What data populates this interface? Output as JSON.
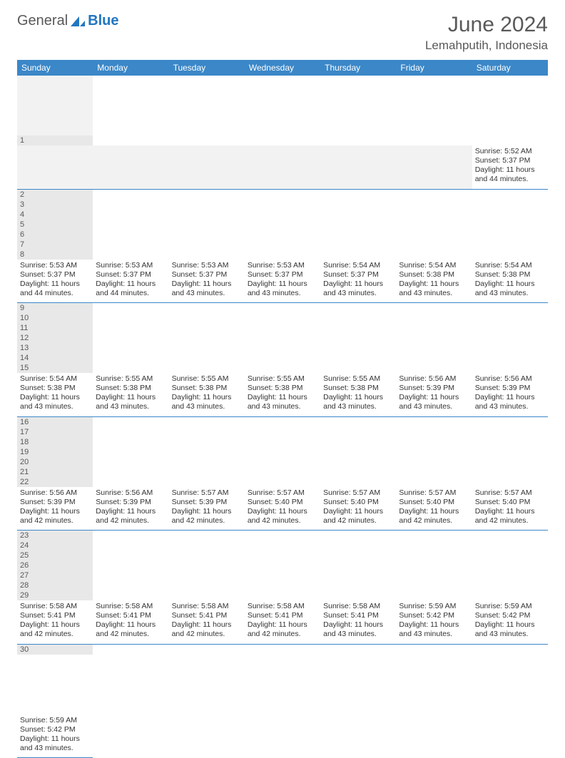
{
  "logo": {
    "word1": "General",
    "word2": "Blue"
  },
  "title": "June 2024",
  "location": "Lemahputih, Indonesia",
  "colors": {
    "header_bg": "#3b87c8",
    "header_text": "#ffffff",
    "num_bg": "#e8e8e8",
    "border": "#3b87c8",
    "text": "#333333"
  },
  "day_names": [
    "Sunday",
    "Monday",
    "Tuesday",
    "Wednesday",
    "Thursday",
    "Friday",
    "Saturday"
  ],
  "weeks": [
    [
      null,
      null,
      null,
      null,
      null,
      null,
      {
        "n": "1",
        "sr": "Sunrise: 5:52 AM",
        "ss": "Sunset: 5:37 PM",
        "dl": "Daylight: 11 hours and 44 minutes."
      }
    ],
    [
      {
        "n": "2",
        "sr": "Sunrise: 5:53 AM",
        "ss": "Sunset: 5:37 PM",
        "dl": "Daylight: 11 hours and 44 minutes."
      },
      {
        "n": "3",
        "sr": "Sunrise: 5:53 AM",
        "ss": "Sunset: 5:37 PM",
        "dl": "Daylight: 11 hours and 44 minutes."
      },
      {
        "n": "4",
        "sr": "Sunrise: 5:53 AM",
        "ss": "Sunset: 5:37 PM",
        "dl": "Daylight: 11 hours and 43 minutes."
      },
      {
        "n": "5",
        "sr": "Sunrise: 5:53 AM",
        "ss": "Sunset: 5:37 PM",
        "dl": "Daylight: 11 hours and 43 minutes."
      },
      {
        "n": "6",
        "sr": "Sunrise: 5:54 AM",
        "ss": "Sunset: 5:37 PM",
        "dl": "Daylight: 11 hours and 43 minutes."
      },
      {
        "n": "7",
        "sr": "Sunrise: 5:54 AM",
        "ss": "Sunset: 5:38 PM",
        "dl": "Daylight: 11 hours and 43 minutes."
      },
      {
        "n": "8",
        "sr": "Sunrise: 5:54 AM",
        "ss": "Sunset: 5:38 PM",
        "dl": "Daylight: 11 hours and 43 minutes."
      }
    ],
    [
      {
        "n": "9",
        "sr": "Sunrise: 5:54 AM",
        "ss": "Sunset: 5:38 PM",
        "dl": "Daylight: 11 hours and 43 minutes."
      },
      {
        "n": "10",
        "sr": "Sunrise: 5:55 AM",
        "ss": "Sunset: 5:38 PM",
        "dl": "Daylight: 11 hours and 43 minutes."
      },
      {
        "n": "11",
        "sr": "Sunrise: 5:55 AM",
        "ss": "Sunset: 5:38 PM",
        "dl": "Daylight: 11 hours and 43 minutes."
      },
      {
        "n": "12",
        "sr": "Sunrise: 5:55 AM",
        "ss": "Sunset: 5:38 PM",
        "dl": "Daylight: 11 hours and 43 minutes."
      },
      {
        "n": "13",
        "sr": "Sunrise: 5:55 AM",
        "ss": "Sunset: 5:38 PM",
        "dl": "Daylight: 11 hours and 43 minutes."
      },
      {
        "n": "14",
        "sr": "Sunrise: 5:56 AM",
        "ss": "Sunset: 5:39 PM",
        "dl": "Daylight: 11 hours and 43 minutes."
      },
      {
        "n": "15",
        "sr": "Sunrise: 5:56 AM",
        "ss": "Sunset: 5:39 PM",
        "dl": "Daylight: 11 hours and 43 minutes."
      }
    ],
    [
      {
        "n": "16",
        "sr": "Sunrise: 5:56 AM",
        "ss": "Sunset: 5:39 PM",
        "dl": "Daylight: 11 hours and 42 minutes."
      },
      {
        "n": "17",
        "sr": "Sunrise: 5:56 AM",
        "ss": "Sunset: 5:39 PM",
        "dl": "Daylight: 11 hours and 42 minutes."
      },
      {
        "n": "18",
        "sr": "Sunrise: 5:57 AM",
        "ss": "Sunset: 5:39 PM",
        "dl": "Daylight: 11 hours and 42 minutes."
      },
      {
        "n": "19",
        "sr": "Sunrise: 5:57 AM",
        "ss": "Sunset: 5:40 PM",
        "dl": "Daylight: 11 hours and 42 minutes."
      },
      {
        "n": "20",
        "sr": "Sunrise: 5:57 AM",
        "ss": "Sunset: 5:40 PM",
        "dl": "Daylight: 11 hours and 42 minutes."
      },
      {
        "n": "21",
        "sr": "Sunrise: 5:57 AM",
        "ss": "Sunset: 5:40 PM",
        "dl": "Daylight: 11 hours and 42 minutes."
      },
      {
        "n": "22",
        "sr": "Sunrise: 5:57 AM",
        "ss": "Sunset: 5:40 PM",
        "dl": "Daylight: 11 hours and 42 minutes."
      }
    ],
    [
      {
        "n": "23",
        "sr": "Sunrise: 5:58 AM",
        "ss": "Sunset: 5:41 PM",
        "dl": "Daylight: 11 hours and 42 minutes."
      },
      {
        "n": "24",
        "sr": "Sunrise: 5:58 AM",
        "ss": "Sunset: 5:41 PM",
        "dl": "Daylight: 11 hours and 42 minutes."
      },
      {
        "n": "25",
        "sr": "Sunrise: 5:58 AM",
        "ss": "Sunset: 5:41 PM",
        "dl": "Daylight: 11 hours and 42 minutes."
      },
      {
        "n": "26",
        "sr": "Sunrise: 5:58 AM",
        "ss": "Sunset: 5:41 PM",
        "dl": "Daylight: 11 hours and 42 minutes."
      },
      {
        "n": "27",
        "sr": "Sunrise: 5:58 AM",
        "ss": "Sunset: 5:41 PM",
        "dl": "Daylight: 11 hours and 43 minutes."
      },
      {
        "n": "28",
        "sr": "Sunrise: 5:59 AM",
        "ss": "Sunset: 5:42 PM",
        "dl": "Daylight: 11 hours and 43 minutes."
      },
      {
        "n": "29",
        "sr": "Sunrise: 5:59 AM",
        "ss": "Sunset: 5:42 PM",
        "dl": "Daylight: 11 hours and 43 minutes."
      }
    ],
    [
      {
        "n": "30",
        "sr": "Sunrise: 5:59 AM",
        "ss": "Sunset: 5:42 PM",
        "dl": "Daylight: 11 hours and 43 minutes."
      },
      null,
      null,
      null,
      null,
      null,
      null
    ]
  ]
}
